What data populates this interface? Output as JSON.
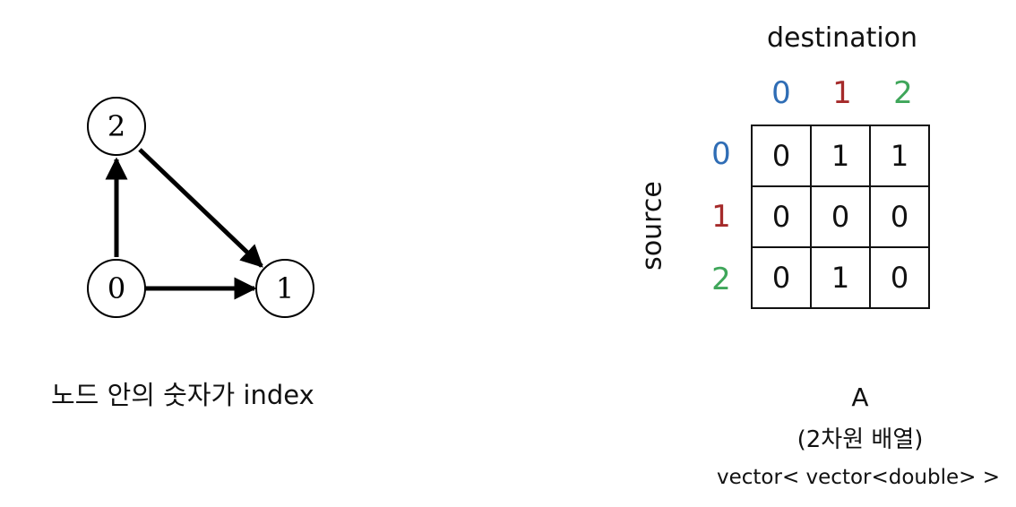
{
  "graph": {
    "nodes": [
      {
        "id": "0",
        "label": "0"
      },
      {
        "id": "1",
        "label": "1"
      },
      {
        "id": "2",
        "label": "2"
      }
    ],
    "edges": [
      {
        "from": "0",
        "to": "2"
      },
      {
        "from": "2",
        "to": "1"
      },
      {
        "from": "0",
        "to": "1"
      }
    ],
    "caption": "노드 안의 숫자가 index"
  },
  "matrix": {
    "column_title": "destination",
    "row_title": "source",
    "column_indices": [
      "0",
      "1",
      "2"
    ],
    "row_indices": [
      "0",
      "1",
      "2"
    ],
    "index_colors": [
      "#2f6db5",
      "#a52a2a",
      "#3fa65a"
    ],
    "values": [
      [
        "0",
        "1",
        "1"
      ],
      [
        "0",
        "0",
        "0"
      ],
      [
        "0",
        "1",
        "0"
      ]
    ],
    "name": "A",
    "description": "(2차원 배열)",
    "type": "vector< vector<double> >"
  }
}
